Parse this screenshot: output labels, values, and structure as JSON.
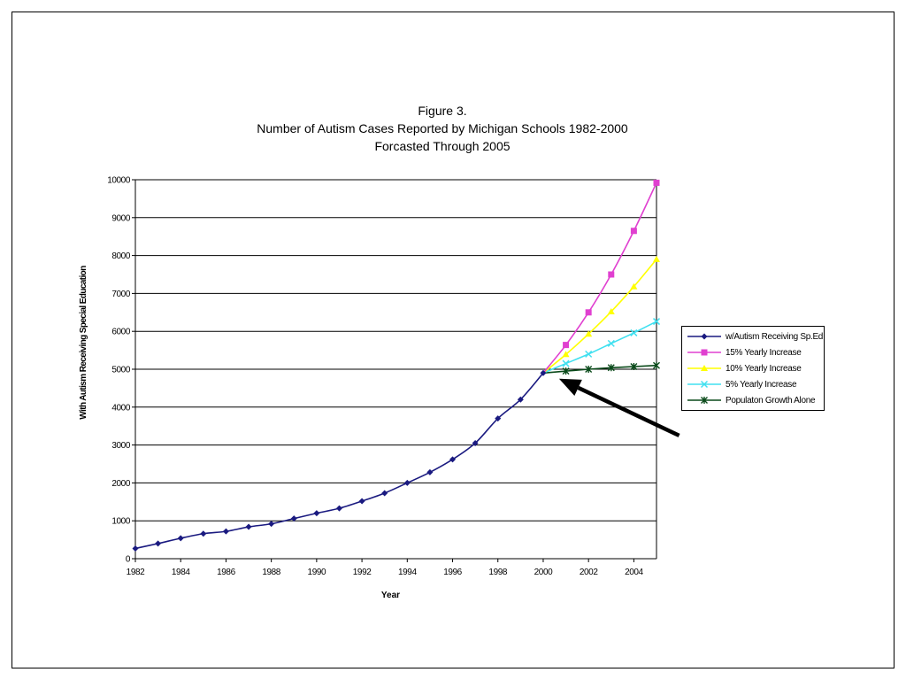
{
  "chart_data": {
    "type": "line",
    "title": "Figure 3.",
    "subtitle_lines": [
      "Number of Autism Cases Reported by Michigan Schools 1982-2000",
      "Forcasted Through 2005"
    ],
    "xlabel": "Year",
    "ylabel": "With Autism Receiving Special Education",
    "xlim": [
      1982,
      2005
    ],
    "ylim": [
      0,
      10000
    ],
    "xticks": [
      1982,
      1984,
      1986,
      1988,
      1990,
      1992,
      1994,
      1996,
      1998,
      2000,
      2002,
      2004
    ],
    "yticks": [
      0,
      1000,
      2000,
      3000,
      4000,
      5000,
      6000,
      7000,
      8000,
      9000,
      10000
    ],
    "grid": "horizontal",
    "legend_position": "right",
    "series": [
      {
        "name": "w/Autism Receiving Sp.Ed.",
        "color": "#1a1a80",
        "marker": "diamond",
        "x": [
          1982,
          1983,
          1984,
          1985,
          1986,
          1987,
          1988,
          1989,
          1990,
          1991,
          1992,
          1993,
          1994,
          1995,
          1996,
          1997,
          1998,
          1999,
          2000
        ],
        "values": [
          270,
          400,
          540,
          660,
          720,
          840,
          920,
          1060,
          1200,
          1330,
          1520,
          1730,
          2000,
          2280,
          2620,
          3050,
          3700,
          4200,
          4900
        ]
      },
      {
        "name": "15% Yearly Increase",
        "color": "#e040d0",
        "marker": "square",
        "x": [
          2000,
          2001,
          2002,
          2003,
          2004,
          2005
        ],
        "values": [
          4900,
          5640,
          6500,
          7500,
          8650,
          9920
        ]
      },
      {
        "name": "10% Yearly Increase",
        "color": "#ffff00",
        "marker": "triangle",
        "x": [
          2000,
          2001,
          2002,
          2003,
          2004,
          2005
        ],
        "values": [
          4900,
          5390,
          5930,
          6520,
          7180,
          7900
        ]
      },
      {
        "name": "5% Yearly Increase",
        "color": "#40e0f0",
        "marker": "x",
        "x": [
          2000,
          2001,
          2002,
          2003,
          2004,
          2005
        ],
        "values": [
          4900,
          5150,
          5400,
          5680,
          5960,
          6260
        ]
      },
      {
        "name": "Populaton Growth Alone",
        "color": "#0a4a1a",
        "marker": "star",
        "x": [
          2000,
          2001,
          2002,
          2003,
          2004,
          2005
        ],
        "values": [
          4900,
          4950,
          5000,
          5040,
          5070,
          5100
        ]
      }
    ],
    "annotations": [
      {
        "type": "arrow",
        "from": [
          2006,
          3250
        ],
        "to": [
          2000.7,
          4750
        ],
        "color": "#000000"
      }
    ]
  }
}
